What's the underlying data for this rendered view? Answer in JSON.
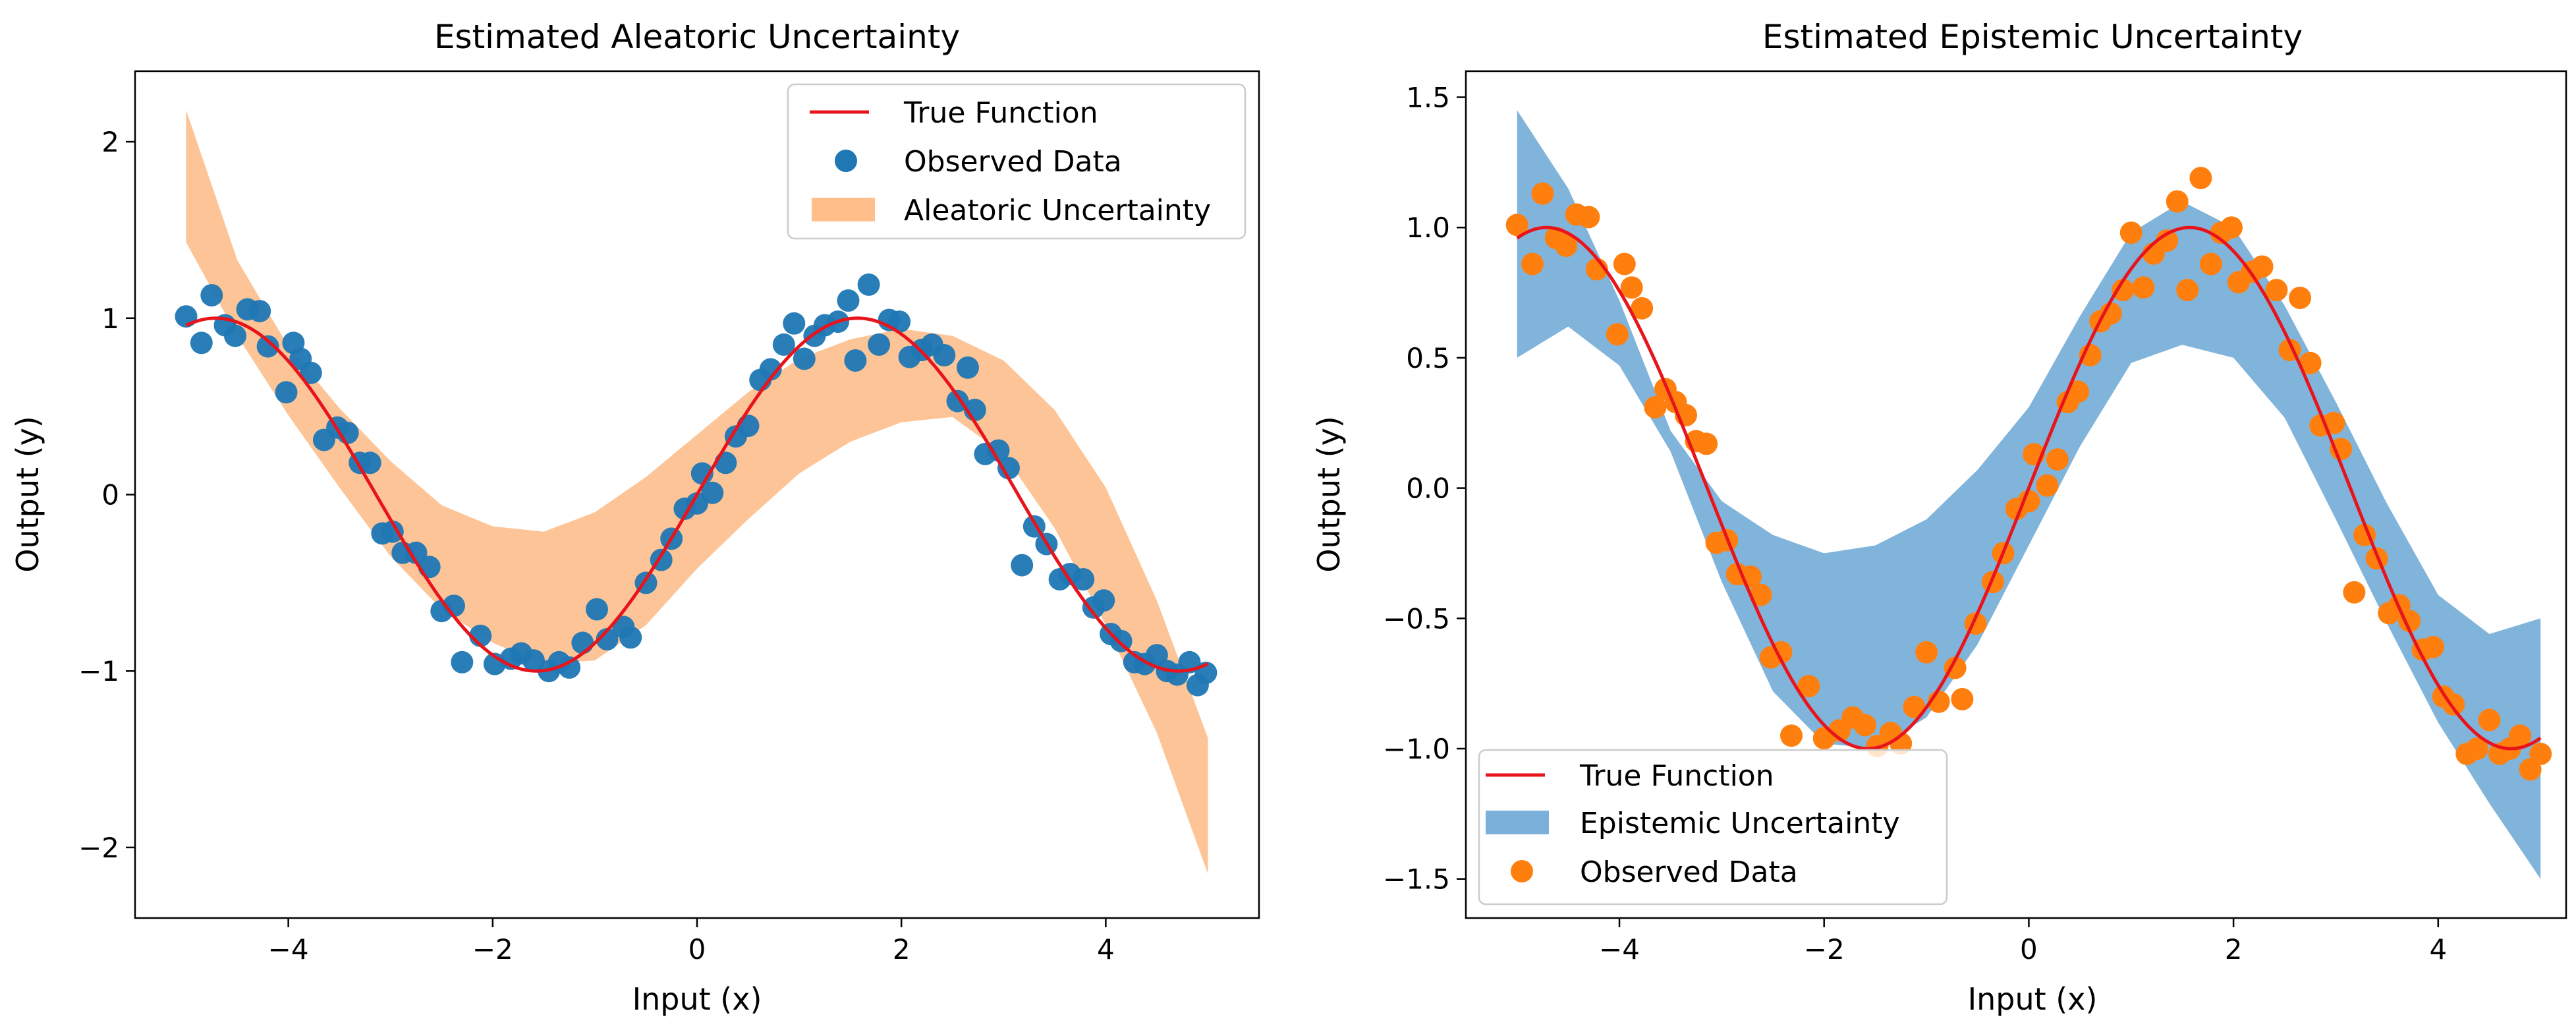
{
  "chart_data": [
    {
      "type": "line",
      "title": "Estimated Aleatoric Uncertainty",
      "xlabel": "Input (x)",
      "ylabel": "Output (y)",
      "xlim": [
        -5.5,
        5.5
      ],
      "ylim": [
        -2.4,
        2.4
      ],
      "xticks": [
        -4,
        -2,
        0,
        2,
        4
      ],
      "yticks": [
        -2,
        -1,
        0,
        1,
        2
      ],
      "xtick_labels": [
        "−4",
        "−2",
        "0",
        "2",
        "4"
      ],
      "ytick_labels": [
        "−2",
        "−1",
        "0",
        "1",
        "2"
      ],
      "legend_position": "top-right",
      "legend": [
        {
          "label": "True Function",
          "kind": "line",
          "color": "#e8141c"
        },
        {
          "label": "Observed Data",
          "kind": "marker",
          "color": "#1f77b4"
        },
        {
          "label": "Aleatoric Uncertainty",
          "kind": "patch",
          "color": "#ffbe8a"
        }
      ],
      "true_function": {
        "name": "True Function",
        "expression": "sin(x)",
        "x_range": [
          -5,
          5
        ],
        "color": "#e8141c"
      },
      "band": {
        "name": "Aleatoric Uncertainty",
        "color": "#fdbf8c",
        "x": [
          -5.0,
          -4.5,
          -4.0,
          -3.5,
          -3.0,
          -2.5,
          -2.0,
          -1.5,
          -1.0,
          -0.5,
          0.0,
          0.5,
          1.0,
          1.5,
          2.0,
          2.5,
          3.0,
          3.5,
          4.0,
          4.5,
          5.0
        ],
        "lower": [
          1.43,
          0.9,
          0.45,
          0.04,
          -0.35,
          -0.65,
          -0.84,
          -0.96,
          -0.94,
          -0.74,
          -0.42,
          -0.14,
          0.12,
          0.3,
          0.41,
          0.44,
          0.23,
          -0.19,
          -0.74,
          -1.35,
          -2.15
        ],
        "upper": [
          2.18,
          1.33,
          0.84,
          0.49,
          0.19,
          -0.06,
          -0.18,
          -0.21,
          -0.1,
          0.1,
          0.34,
          0.58,
          0.77,
          0.88,
          0.94,
          0.9,
          0.76,
          0.48,
          0.04,
          -0.6,
          -1.38
        ]
      },
      "scatter": {
        "name": "Observed Data",
        "color": "#1f77b4",
        "points": [
          [
            -5.0,
            1.01
          ],
          [
            -4.85,
            0.86
          ],
          [
            -4.75,
            1.13
          ],
          [
            -4.62,
            0.96
          ],
          [
            -4.52,
            0.9
          ],
          [
            -4.4,
            1.05
          ],
          [
            -4.28,
            1.04
          ],
          [
            -4.2,
            0.84
          ],
          [
            -4.02,
            0.58
          ],
          [
            -3.95,
            0.86
          ],
          [
            -3.88,
            0.77
          ],
          [
            -3.78,
            0.69
          ],
          [
            -3.65,
            0.31
          ],
          [
            -3.52,
            0.38
          ],
          [
            -3.42,
            0.35
          ],
          [
            -3.3,
            0.18
          ],
          [
            -3.2,
            0.18
          ],
          [
            -3.08,
            -0.22
          ],
          [
            -2.98,
            -0.21
          ],
          [
            -2.88,
            -0.33
          ],
          [
            -2.75,
            -0.33
          ],
          [
            -2.62,
            -0.41
          ],
          [
            -2.5,
            -0.66
          ],
          [
            -2.38,
            -0.63
          ],
          [
            -2.3,
            -0.95
          ],
          [
            -2.12,
            -0.8
          ],
          [
            -1.98,
            -0.96
          ],
          [
            -1.82,
            -0.93
          ],
          [
            -1.72,
            -0.9
          ],
          [
            -1.6,
            -0.94
          ],
          [
            -1.45,
            -1.0
          ],
          [
            -1.35,
            -0.95
          ],
          [
            -1.25,
            -0.98
          ],
          [
            -1.12,
            -0.84
          ],
          [
            -0.98,
            -0.65
          ],
          [
            -0.88,
            -0.82
          ],
          [
            -0.72,
            -0.75
          ],
          [
            -0.65,
            -0.81
          ],
          [
            -0.5,
            -0.5
          ],
          [
            -0.35,
            -0.37
          ],
          [
            -0.25,
            -0.25
          ],
          [
            -0.12,
            -0.08
          ],
          [
            0.0,
            -0.05
          ],
          [
            0.05,
            0.12
          ],
          [
            0.15,
            0.01
          ],
          [
            0.28,
            0.18
          ],
          [
            0.38,
            0.33
          ],
          [
            0.5,
            0.39
          ],
          [
            0.62,
            0.65
          ],
          [
            0.72,
            0.71
          ],
          [
            0.85,
            0.85
          ],
          [
            0.95,
            0.97
          ],
          [
            1.05,
            0.77
          ],
          [
            1.15,
            0.9
          ],
          [
            1.25,
            0.96
          ],
          [
            1.38,
            0.98
          ],
          [
            1.48,
            1.1
          ],
          [
            1.55,
            0.76
          ],
          [
            1.68,
            1.19
          ],
          [
            1.78,
            0.85
          ],
          [
            1.88,
            0.99
          ],
          [
            1.98,
            0.98
          ],
          [
            2.08,
            0.78
          ],
          [
            2.2,
            0.82
          ],
          [
            2.3,
            0.85
          ],
          [
            2.42,
            0.79
          ],
          [
            2.55,
            0.53
          ],
          [
            2.65,
            0.72
          ],
          [
            2.72,
            0.48
          ],
          [
            2.82,
            0.23
          ],
          [
            2.95,
            0.25
          ],
          [
            3.05,
            0.15
          ],
          [
            3.18,
            -0.4
          ],
          [
            3.3,
            -0.18
          ],
          [
            3.42,
            -0.28
          ],
          [
            3.55,
            -0.48
          ],
          [
            3.65,
            -0.45
          ],
          [
            3.78,
            -0.48
          ],
          [
            3.88,
            -0.64
          ],
          [
            3.98,
            -0.6
          ],
          [
            4.05,
            -0.79
          ],
          [
            4.15,
            -0.83
          ],
          [
            4.28,
            -0.95
          ],
          [
            4.38,
            -0.96
          ],
          [
            4.5,
            -0.91
          ],
          [
            4.6,
            -1.0
          ],
          [
            4.7,
            -1.02
          ],
          [
            4.82,
            -0.95
          ],
          [
            4.9,
            -1.08
          ],
          [
            4.98,
            -1.01
          ]
        ]
      }
    },
    {
      "type": "line",
      "title": "Estimated Epistemic Uncertainty",
      "xlabel": "Input (x)",
      "ylabel": "Output (y)",
      "xlim": [
        -5.5,
        5.25
      ],
      "ylim": [
        -1.65,
        1.6
      ],
      "xticks": [
        -4,
        -2,
        0,
        2,
        4
      ],
      "yticks": [
        -1.5,
        -1.0,
        -0.5,
        0.0,
        0.5,
        1.0,
        1.5
      ],
      "xtick_labels": [
        "−4",
        "−2",
        "0",
        "2",
        "4"
      ],
      "ytick_labels": [
        "−1.5",
        "−1.0",
        "−0.5",
        "0.0",
        "0.5",
        "1.0",
        "1.5"
      ],
      "legend_position": "bottom-left",
      "legend": [
        {
          "label": "True Function",
          "kind": "line",
          "color": "#e8141c"
        },
        {
          "label": "Epistemic Uncertainty",
          "kind": "patch",
          "color": "#7ab0d9"
        },
        {
          "label": "Observed Data",
          "kind": "marker",
          "color": "#ff7f0e"
        }
      ],
      "true_function": {
        "name": "True Function",
        "expression": "sin(x)",
        "x_range": [
          -5,
          5
        ],
        "color": "#e8141c"
      },
      "band": {
        "name": "Epistemic Uncertainty",
        "color": "#7ab0d9",
        "x": [
          -5.0,
          -4.5,
          -4.0,
          -3.5,
          -3.0,
          -2.5,
          -2.0,
          -1.5,
          -1.0,
          -0.5,
          0.0,
          0.5,
          1.0,
          1.5,
          2.0,
          2.5,
          3.0,
          3.5,
          4.0,
          4.5,
          5.0
        ],
        "lower": [
          0.5,
          0.62,
          0.47,
          0.14,
          -0.36,
          -0.78,
          -0.98,
          -1.0,
          -0.88,
          -0.6,
          -0.22,
          0.16,
          0.48,
          0.55,
          0.5,
          0.27,
          -0.12,
          -0.52,
          -0.9,
          -1.21,
          -1.5
        ],
        "upper": [
          1.45,
          1.15,
          0.72,
          0.22,
          -0.05,
          -0.18,
          -0.25,
          -0.22,
          -0.12,
          0.07,
          0.31,
          0.66,
          0.98,
          1.1,
          1.0,
          0.7,
          0.33,
          -0.06,
          -0.41,
          -0.56,
          -0.5
        ]
      },
      "scatter": {
        "name": "Observed Data",
        "color": "#ff7f0e",
        "points": [
          [
            -5.0,
            1.01
          ],
          [
            -4.85,
            0.86
          ],
          [
            -4.75,
            1.13
          ],
          [
            -4.62,
            0.96
          ],
          [
            -4.52,
            0.93
          ],
          [
            -4.42,
            1.05
          ],
          [
            -4.3,
            1.04
          ],
          [
            -4.22,
            0.84
          ],
          [
            -4.02,
            0.59
          ],
          [
            -3.95,
            0.86
          ],
          [
            -3.88,
            0.77
          ],
          [
            -3.78,
            0.69
          ],
          [
            -3.65,
            0.31
          ],
          [
            -3.55,
            0.38
          ],
          [
            -3.45,
            0.33
          ],
          [
            -3.35,
            0.28
          ],
          [
            -3.25,
            0.18
          ],
          [
            -3.15,
            0.17
          ],
          [
            -3.05,
            -0.21
          ],
          [
            -2.95,
            -0.2
          ],
          [
            -2.85,
            -0.33
          ],
          [
            -2.72,
            -0.34
          ],
          [
            -2.62,
            -0.41
          ],
          [
            -2.52,
            -0.65
          ],
          [
            -2.42,
            -0.63
          ],
          [
            -2.32,
            -0.95
          ],
          [
            -2.15,
            -0.76
          ],
          [
            -2.0,
            -0.96
          ],
          [
            -1.85,
            -0.93
          ],
          [
            -1.72,
            -0.88
          ],
          [
            -1.6,
            -0.91
          ],
          [
            -1.48,
            -0.99
          ],
          [
            -1.35,
            -0.94
          ],
          [
            -1.25,
            -0.98
          ],
          [
            -1.12,
            -0.84
          ],
          [
            -1.0,
            -0.63
          ],
          [
            -0.88,
            -0.82
          ],
          [
            -0.72,
            -0.69
          ],
          [
            -0.65,
            -0.81
          ],
          [
            -0.52,
            -0.52
          ],
          [
            -0.35,
            -0.36
          ],
          [
            -0.25,
            -0.25
          ],
          [
            -0.12,
            -0.08
          ],
          [
            0.0,
            -0.05
          ],
          [
            0.05,
            0.13
          ],
          [
            0.18,
            0.01
          ],
          [
            0.28,
            0.11
          ],
          [
            0.38,
            0.33
          ],
          [
            0.48,
            0.37
          ],
          [
            0.6,
            0.51
          ],
          [
            0.7,
            0.64
          ],
          [
            0.8,
            0.67
          ],
          [
            0.92,
            0.76
          ],
          [
            1.0,
            0.98
          ],
          [
            1.12,
            0.77
          ],
          [
            1.22,
            0.9
          ],
          [
            1.35,
            0.95
          ],
          [
            1.45,
            1.1
          ],
          [
            1.55,
            0.76
          ],
          [
            1.68,
            1.19
          ],
          [
            1.78,
            0.86
          ],
          [
            1.88,
            0.98
          ],
          [
            1.98,
            1.0
          ],
          [
            2.05,
            0.79
          ],
          [
            2.18,
            0.83
          ],
          [
            2.28,
            0.85
          ],
          [
            2.42,
            0.76
          ],
          [
            2.55,
            0.53
          ],
          [
            2.65,
            0.73
          ],
          [
            2.75,
            0.48
          ],
          [
            2.85,
            0.24
          ],
          [
            2.98,
            0.25
          ],
          [
            3.05,
            0.15
          ],
          [
            3.18,
            -0.4
          ],
          [
            3.28,
            -0.18
          ],
          [
            3.4,
            -0.27
          ],
          [
            3.52,
            -0.48
          ],
          [
            3.62,
            -0.45
          ],
          [
            3.72,
            -0.51
          ],
          [
            3.85,
            -0.62
          ],
          [
            3.95,
            -0.61
          ],
          [
            4.05,
            -0.8
          ],
          [
            4.15,
            -0.83
          ],
          [
            4.28,
            -1.02
          ],
          [
            4.38,
            -1.0
          ],
          [
            4.5,
            -0.89
          ],
          [
            4.6,
            -1.02
          ],
          [
            4.7,
            -1.0
          ],
          [
            4.8,
            -0.95
          ],
          [
            4.9,
            -1.08
          ],
          [
            5.0,
            -1.02
          ]
        ]
      }
    }
  ]
}
